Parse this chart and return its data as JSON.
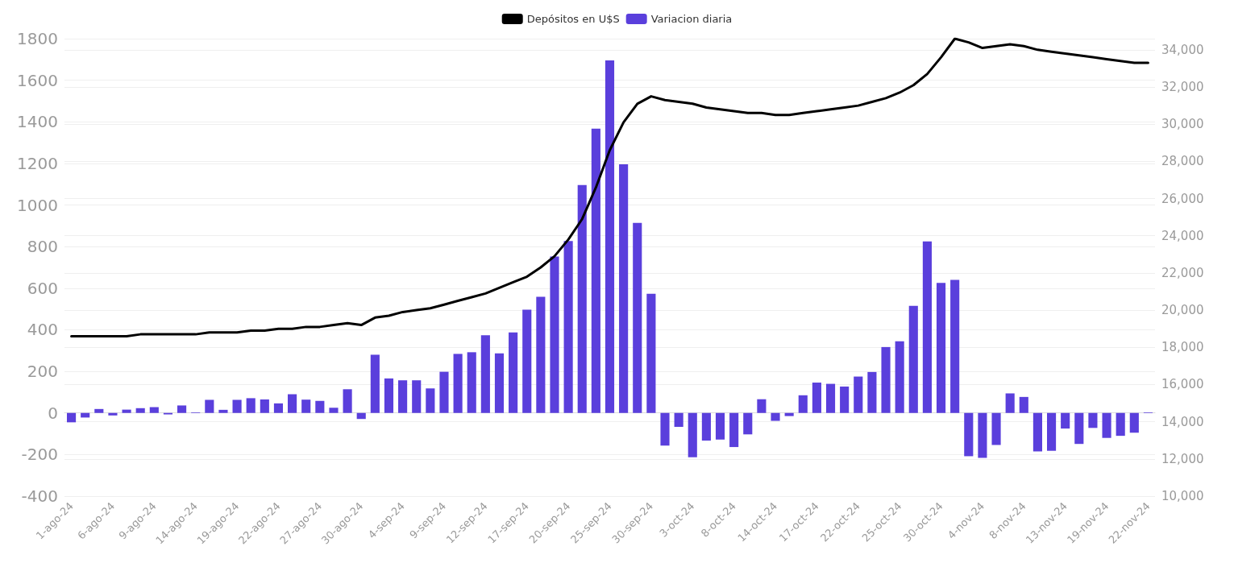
{
  "chart_data": {
    "type": "bar",
    "categories": [
      "1-ago-24",
      null,
      null,
      "6-ago-24",
      null,
      null,
      "9-ago-24",
      null,
      null,
      "14-ago-24",
      null,
      null,
      "19-ago-24",
      null,
      null,
      "22-ago-24",
      null,
      null,
      "27-ago-24",
      null,
      null,
      "30-ago-24",
      null,
      null,
      "4-sep-24",
      null,
      null,
      "9-sep-24",
      null,
      null,
      "12-sep-24",
      null,
      null,
      "17-sep-24",
      null,
      null,
      "20-sep-24",
      null,
      null,
      "25-sep-24",
      null,
      null,
      "30-sep-24",
      null,
      null,
      "3-oct-24",
      null,
      null,
      "8-oct-24",
      null,
      null,
      "14-oct-24",
      null,
      null,
      "17-oct-24",
      null,
      null,
      "22-oct-24",
      null,
      null,
      "25-oct-24",
      null,
      null,
      "30-oct-24",
      null,
      null,
      "4-nov-24",
      null,
      null,
      "8-nov-24",
      null,
      null,
      "13-nov-24",
      null,
      null,
      "19-nov-24",
      null,
      null,
      "22-nov-24"
    ],
    "series": [
      {
        "name": "Depósitos en U$S",
        "type": "line",
        "axis": "y2",
        "color": "#000000",
        "values": [
          18600,
          18600,
          18600,
          18600,
          18600,
          18700,
          18700,
          18700,
          18700,
          18700,
          18800,
          18800,
          18800,
          18900,
          18900,
          19000,
          19000,
          19100,
          19100,
          19200,
          19300,
          19200,
          19600,
          19700,
          19900,
          20000,
          20100,
          20300,
          20500,
          20700,
          20900,
          21200,
          21500,
          21800,
          22300,
          22900,
          23800,
          24900,
          26600,
          28600,
          30100,
          31100,
          31500,
          31300,
          31200,
          31100,
          30900,
          30800,
          30700,
          30600,
          30600,
          30500,
          30500,
          30600,
          30700,
          30800,
          30900,
          31000,
          31200,
          31400,
          31700,
          32100,
          32700,
          33600,
          34600,
          34400,
          34100,
          34200,
          34300,
          34200,
          34000,
          33900,
          33800,
          33700,
          33600,
          33500,
          33400,
          33300,
          33300
        ]
      },
      {
        "name": "Variacion diaria",
        "color": "#5a3fdc",
        "values": [
          -45,
          -22,
          19,
          -12,
          16,
          23,
          28,
          -7,
          36,
          3,
          63,
          15,
          63,
          71,
          65,
          46,
          90,
          64,
          58,
          25,
          114,
          -29,
          280,
          166,
          157,
          157,
          118,
          198,
          284,
          292,
          374,
          287,
          387,
          497,
          559,
          752,
          827,
          1096,
          1367,
          1695,
          1196,
          914,
          573,
          -157,
          -67,
          -213,
          -133,
          -128,
          -164,
          -103,
          66,
          -38,
          -15,
          85,
          146,
          140,
          127,
          175,
          197,
          317,
          345,
          515,
          825,
          625,
          640,
          -208,
          -216,
          -154,
          94,
          77,
          -185,
          -182,
          -75,
          -149,
          -72,
          -120,
          -110,
          -95,
          3
        ]
      }
    ],
    "ylim": [
      -400,
      1800
    ],
    "yticks": [
      -400,
      -200,
      0,
      200,
      400,
      600,
      800,
      1000,
      1200,
      1400,
      1600,
      1800
    ],
    "y2lim": [
      10000,
      34600
    ],
    "y2ticks": [
      {
        "value": 10000,
        "label": "10,000"
      },
      {
        "value": 12000,
        "label": "12,000"
      },
      {
        "value": 14000,
        "label": "14,000"
      },
      {
        "value": 16000,
        "label": "16,000"
      },
      {
        "value": 18000,
        "label": "18,000"
      },
      {
        "value": 20000,
        "label": "20,000"
      },
      {
        "value": 22000,
        "label": "22,000"
      },
      {
        "value": 24000,
        "label": "24,000"
      },
      {
        "value": 26000,
        "label": "26,000"
      },
      {
        "value": 28000,
        "label": "28,000"
      },
      {
        "value": 30000,
        "label": "30,000"
      },
      {
        "value": 32000,
        "label": "32,000"
      },
      {
        "value": 34000,
        "label": "34,000"
      }
    ],
    "grid": "y",
    "legend": "top",
    "marker": "none",
    "line_style": "solid"
  }
}
